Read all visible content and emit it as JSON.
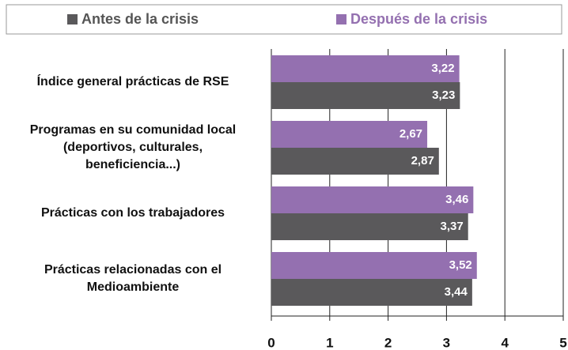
{
  "chart_data": {
    "type": "bar",
    "orientation": "horizontal",
    "categories": [
      "Índice general prácticas de RSE",
      "Programas en su comunidad local\n(deportivos, culturales,\nbeneficiencia...)",
      "Prácticas con los trabajadores",
      "Prácticas relacionadas con el\nMedioambiente"
    ],
    "series": [
      {
        "name": "Antes de la crisis",
        "color": "#5a595b",
        "values": [
          3.23,
          2.87,
          3.37,
          3.44
        ],
        "value_labels": [
          "3,23",
          "2,87",
          "3,37",
          "3,44"
        ]
      },
      {
        "name": "Después de la crisis",
        "color": "#9470b0",
        "values": [
          3.22,
          2.67,
          3.46,
          3.52
        ],
        "value_labels": [
          "3,22",
          "2,67",
          "3,46",
          "3,52"
        ]
      }
    ],
    "xlim": [
      0,
      5
    ],
    "xticks": [
      0,
      1,
      2,
      3,
      4,
      5
    ],
    "grid": true,
    "legend": "top"
  }
}
